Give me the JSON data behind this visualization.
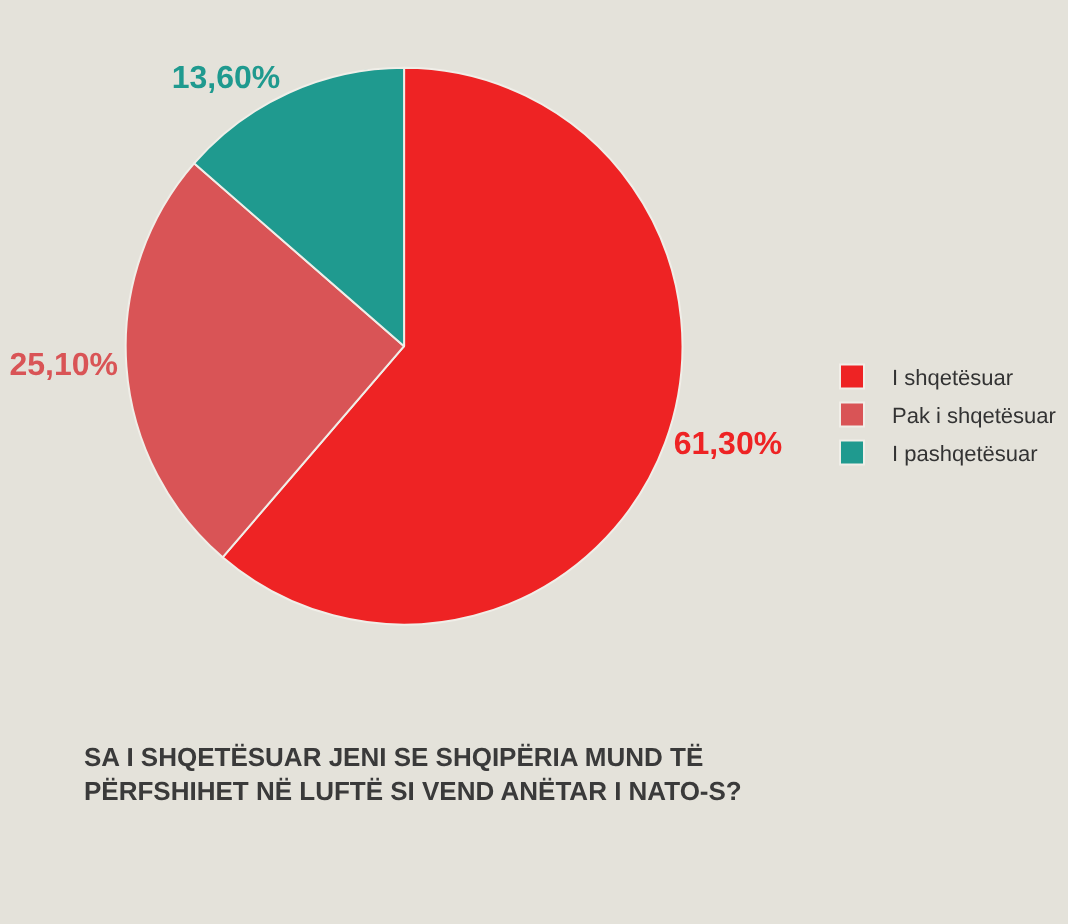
{
  "chart_data": {
    "type": "pie",
    "title": "SA I SHQETËSUAR JENI SE SHQIPËRIA MUND TË PËRFSHIHET NË LUFTË SI VEND ANËTAR I NATO-S?",
    "categories": [
      "I shqetësuar",
      "Pak i shqetësuar",
      "I pashqetësuar"
    ],
    "values": [
      61.3,
      25.1,
      13.6
    ],
    "colors": [
      "#ee2324",
      "#d95456",
      "#1f9a8f"
    ],
    "value_labels": [
      "61,30%",
      "25,10%",
      "13,60%"
    ],
    "legend": "right"
  }
}
